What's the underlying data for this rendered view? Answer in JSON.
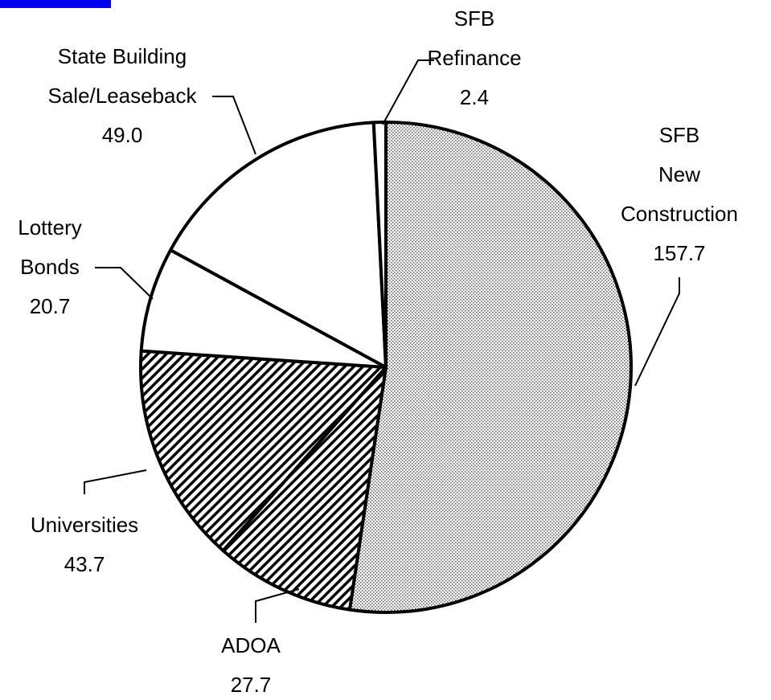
{
  "chart_data": {
    "type": "pie",
    "categories": [
      "SFB\nNew\nConstruction",
      "ADOA",
      "Universities",
      "Lottery\nBonds",
      "State Building\nSale/Leaseback",
      "SFB\nRefinance"
    ],
    "values": [
      157.7,
      27.7,
      43.7,
      20.7,
      49.0,
      2.4
    ],
    "value_labels": [
      "157.7",
      "27.7",
      "43.7",
      "20.7",
      "49.0",
      "2.4"
    ],
    "fills": [
      "dots",
      "stripes",
      "stripes",
      "white",
      "white",
      "white"
    ]
  }
}
